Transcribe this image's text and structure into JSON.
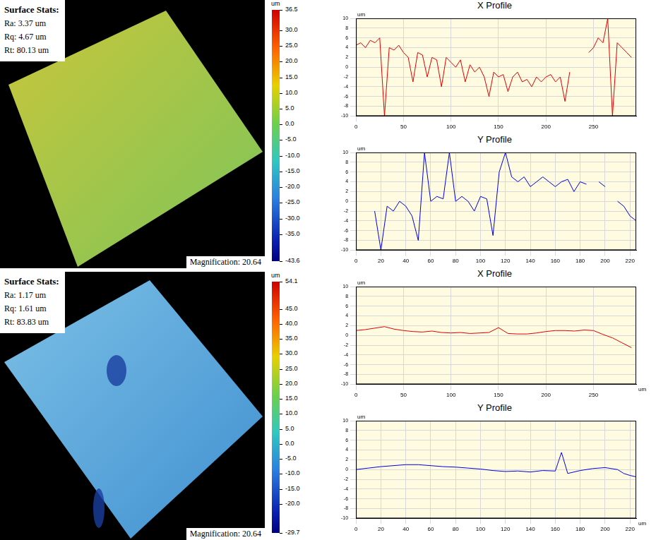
{
  "surfaces": [
    {
      "stats_title": "Surface Stats:",
      "stats": [
        "Ra: 3.37 um",
        "Rq: 4.67 um",
        "Rt: 80.13 um"
      ],
      "magnification": "Magnification: 20.64",
      "colorbar": {
        "label": "um",
        "lim": [
          -43.6,
          36.5
        ],
        "ticks": [
          36.5,
          {
            "value": 30,
            "label": "30.0"
          },
          {
            "value": 25,
            "label": "25.0"
          },
          {
            "value": 20,
            "label": "20.0"
          },
          {
            "value": 15,
            "label": "15.0"
          },
          {
            "value": 10,
            "label": "10.0"
          },
          {
            "value": 5,
            "label": "5.0"
          },
          {
            "value": 0,
            "label": "0.0"
          },
          {
            "value": -5,
            "label": "-5.0"
          },
          {
            "value": -10,
            "label": "-10.0"
          },
          {
            "value": -15,
            "label": "-15.0"
          },
          {
            "value": -20,
            "label": "-20.0"
          },
          {
            "value": -25,
            "label": "-25.0"
          },
          {
            "value": -30,
            "label": "-30.0"
          },
          {
            "value": -35,
            "label": "-35.0"
          },
          -43.6
        ]
      }
    },
    {
      "stats_title": "Surface Stats:",
      "stats": [
        "Ra: 1.17 um",
        "Rq: 1.61 um",
        "Rt: 83.83 um"
      ],
      "magnification": "Magnification: 20.64",
      "colorbar": {
        "label": "um",
        "lim": [
          -29.7,
          54.1
        ],
        "ticks": [
          54.1,
          {
            "value": 45,
            "label": "45.0"
          },
          {
            "value": 40,
            "label": "40.0"
          },
          {
            "value": 35,
            "label": "35.0"
          },
          {
            "value": 30,
            "label": "30.0"
          },
          {
            "value": 25,
            "label": "25.0"
          },
          {
            "value": 20,
            "label": "20.0"
          },
          {
            "value": 15,
            "label": "15.0"
          },
          {
            "value": 10,
            "label": "10.0"
          },
          {
            "value": 5,
            "label": "5.0"
          },
          {
            "value": 0,
            "label": "0.0"
          },
          {
            "value": -5,
            "label": "-5.0"
          },
          {
            "value": -10,
            "label": "-10.0"
          },
          {
            "value": -15,
            "label": "-15.0"
          },
          {
            "value": -20,
            "label": "-20.0"
          },
          -29.7
        ]
      }
    }
  ],
  "chart_data": [
    {
      "type": "line",
      "title": "X Profile",
      "ylabel": "um",
      "color": "#e00000",
      "grid": true,
      "x": [
        0,
        5,
        10,
        15,
        20,
        25,
        30,
        35,
        40,
        45,
        50,
        55,
        60,
        65,
        70,
        75,
        80,
        85,
        90,
        95,
        100,
        105,
        110,
        115,
        120,
        125,
        130,
        135,
        140,
        145,
        150,
        155,
        160,
        165,
        170,
        175,
        180,
        185,
        190,
        195,
        200,
        205,
        210,
        215,
        220,
        225,
        230,
        235,
        240,
        245,
        250,
        255,
        260,
        265,
        270,
        275,
        280,
        285,
        290
      ],
      "values": [
        4.5,
        5,
        4,
        5.5,
        5,
        6,
        -10,
        4,
        3.5,
        4.5,
        3,
        2,
        -3,
        3,
        2.5,
        -2,
        2,
        1.5,
        -4,
        2,
        1,
        0,
        1.5,
        -3,
        0.5,
        -1,
        0,
        -2,
        -6,
        -1,
        -2,
        -1.5,
        -5,
        -2,
        -1,
        -3,
        -2.5,
        -4,
        -2,
        -3,
        -2,
        -1.5,
        -3,
        -2,
        -7,
        -1,
        null,
        null,
        null,
        3,
        4,
        6,
        5,
        10,
        -10,
        5,
        4,
        3,
        2
      ],
      "xlim": [
        0,
        295
      ],
      "xticks": [
        0,
        50,
        100,
        150,
        200,
        250
      ],
      "ylim": [
        -10,
        10
      ],
      "yticks": [
        -10,
        -8,
        -6,
        -4,
        -2,
        0,
        2,
        4,
        6,
        8,
        10
      ]
    },
    {
      "type": "line",
      "title": "Y Profile",
      "ylabel": "um",
      "color": "#0000e0",
      "grid": true,
      "x": [
        0,
        5,
        10,
        15,
        20,
        25,
        30,
        35,
        40,
        45,
        50,
        55,
        60,
        65,
        70,
        75,
        80,
        85,
        90,
        95,
        100,
        105,
        110,
        115,
        120,
        125,
        130,
        135,
        140,
        145,
        150,
        155,
        160,
        165,
        170,
        175,
        180,
        185,
        190,
        195,
        200,
        205,
        210,
        215,
        220,
        225
      ],
      "values": [
        null,
        null,
        null,
        -2,
        -10,
        -1,
        -2,
        0,
        -1,
        -3,
        -8,
        10,
        0,
        1,
        0.5,
        10,
        0,
        1,
        0,
        -2,
        1,
        0.5,
        -7,
        6,
        10,
        5,
        4,
        5,
        3,
        4,
        5,
        4,
        3,
        4,
        4.5,
        2,
        4,
        3.5,
        null,
        4,
        3,
        null,
        0,
        -1,
        -3,
        -4
      ],
      "xlim": [
        0,
        225
      ],
      "xticks": [
        0,
        20,
        40,
        60,
        80,
        100,
        120,
        140,
        160,
        180,
        200,
        220
      ],
      "ylim": [
        -10,
        10
      ],
      "yticks": [
        -10,
        -8,
        -6,
        -4,
        -2,
        0,
        2,
        4,
        6,
        8,
        10
      ]
    },
    {
      "type": "line",
      "title": "X Profile",
      "ylabel": "um",
      "xlabel": "um",
      "color": "#e00000",
      "grid": true,
      "x": [
        0,
        10,
        20,
        30,
        40,
        50,
        60,
        70,
        80,
        90,
        100,
        110,
        120,
        130,
        140,
        150,
        160,
        170,
        180,
        190,
        200,
        210,
        220,
        230,
        240,
        250,
        260,
        270,
        280,
        290
      ],
      "values": [
        1,
        1.2,
        1.5,
        1.8,
        1.3,
        1,
        0.8,
        0.7,
        0.9,
        0.6,
        0.5,
        0.6,
        0.4,
        0.5,
        0.6,
        1.6,
        0.4,
        0.3,
        0.3,
        0.5,
        0.8,
        1,
        1,
        0.9,
        1.1,
        1,
        0.2,
        -0.5,
        -1.5,
        -2.5
      ],
      "xlim": [
        0,
        295
      ],
      "xticks": [
        0,
        50,
        100,
        150,
        200,
        250
      ],
      "ylim": [
        -10,
        10
      ],
      "yticks": [
        -10,
        -8,
        -6,
        -4,
        -2,
        0,
        2,
        4,
        6,
        8,
        10
      ]
    },
    {
      "type": "line",
      "title": "Y Profile",
      "ylabel": "um",
      "xlabel": "um",
      "color": "#0000e0",
      "grid": true,
      "x": [
        0,
        10,
        20,
        30,
        40,
        50,
        60,
        70,
        80,
        90,
        100,
        110,
        120,
        130,
        140,
        150,
        160,
        165,
        170,
        180,
        190,
        200,
        210,
        215,
        220,
        225
      ],
      "values": [
        0,
        0.3,
        0.6,
        0.8,
        1,
        1,
        0.8,
        0.6,
        0.5,
        0.3,
        0.1,
        -0.2,
        -0.4,
        -0.3,
        -0.5,
        -0.2,
        -0.3,
        3.5,
        -0.8,
        -0.2,
        0.2,
        0.4,
        0,
        -0.8,
        -1.2,
        -1.5
      ],
      "xlim": [
        0,
        225
      ],
      "xticks": [
        0,
        20,
        40,
        60,
        80,
        100,
        120,
        140,
        160,
        180,
        200,
        220
      ],
      "ylim": [
        -10,
        10
      ],
      "yticks": [
        -10,
        -8,
        -6,
        -4,
        -2,
        0,
        2,
        4,
        6,
        8,
        10
      ]
    }
  ]
}
